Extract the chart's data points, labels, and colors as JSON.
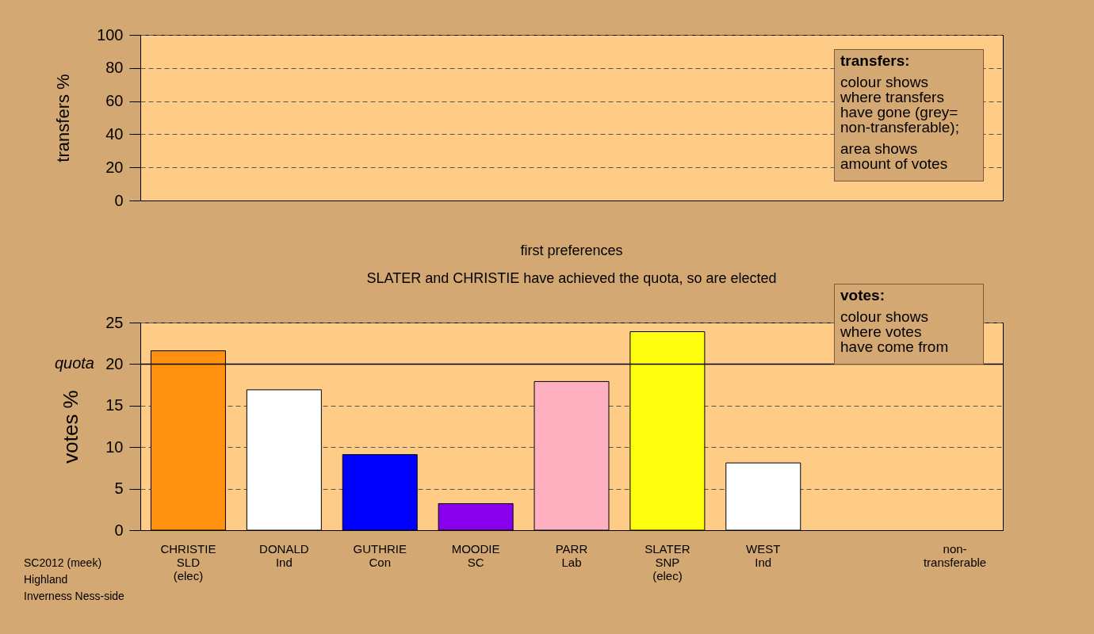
{
  "chart_data": [
    {
      "type": "bar",
      "ylabel": "transfers %",
      "categories": [
        null,
        null,
        null,
        null,
        null,
        null,
        null,
        null,
        null
      ],
      "values": [
        null,
        null,
        null,
        null,
        null,
        null,
        null,
        null,
        null
      ],
      "ylim": [
        0,
        100
      ],
      "yticks": [
        0,
        20,
        40,
        60,
        80,
        100
      ],
      "grid": "y",
      "annotations": [
        "transfers:",
        "colour shows\nwhere transfers\nhave gone (grey=\nnon-transferable);",
        "area shows\namount of votes"
      ]
    },
    {
      "type": "bar",
      "title": "first preferences",
      "subtitle": "SLATER and CHRISTIE have achieved the quota, so are elected",
      "ylabel": "votes %",
      "categories": [
        "CHRISTIE\nSLD\n(elec)",
        "DONALD\nInd",
        "GUTHRIE\nCon",
        "MOODIE\nSC",
        "PARR\nLab",
        "SLATER\nSNP\n(elec)",
        "WEST\nInd",
        null,
        "non-\ntransferable"
      ],
      "values": [
        21.6,
        16.9,
        9.1,
        3.2,
        17.9,
        23.9,
        8.1,
        null,
        null
      ],
      "colors": [
        "#ff9010",
        "#ffffff",
        "#0000ff",
        "#8800ee",
        "#ffb0c0",
        "#ffff10",
        "#ffffff",
        "#ffffff",
        "#ffffff"
      ],
      "ylim": [
        0,
        25
      ],
      "yticks": [
        0,
        5,
        10,
        15,
        20,
        25
      ],
      "grid": "y",
      "ref_lines": [
        {
          "axis": "y",
          "value": 20,
          "label": "quota"
        }
      ],
      "annotations": [
        "votes:",
        "colour shows\nwhere votes\nhave come from",
        "SC2012 (meek)",
        "Highland",
        "Inverness Ness-side"
      ]
    }
  ]
}
